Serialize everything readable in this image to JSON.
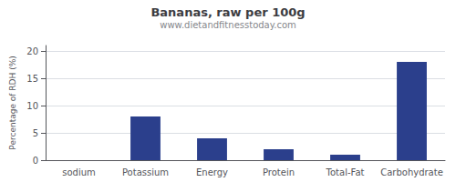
{
  "chart_data": {
    "type": "bar",
    "title": "Bananas, raw per 100g",
    "subtitle": "www.dietandfitnesstoday.com",
    "categories": [
      "sodium",
      "Potassium",
      "Energy",
      "Protein",
      "Total-Fat",
      "Carbohydrate"
    ],
    "values": [
      0,
      8,
      4,
      2,
      1,
      18
    ],
    "color": "#2b3f8c",
    "ylabel": "Percentage of RDH (%)",
    "ylim": [
      0,
      21
    ],
    "yticks": [
      0,
      5,
      10,
      15,
      20
    ],
    "grid": true
  }
}
